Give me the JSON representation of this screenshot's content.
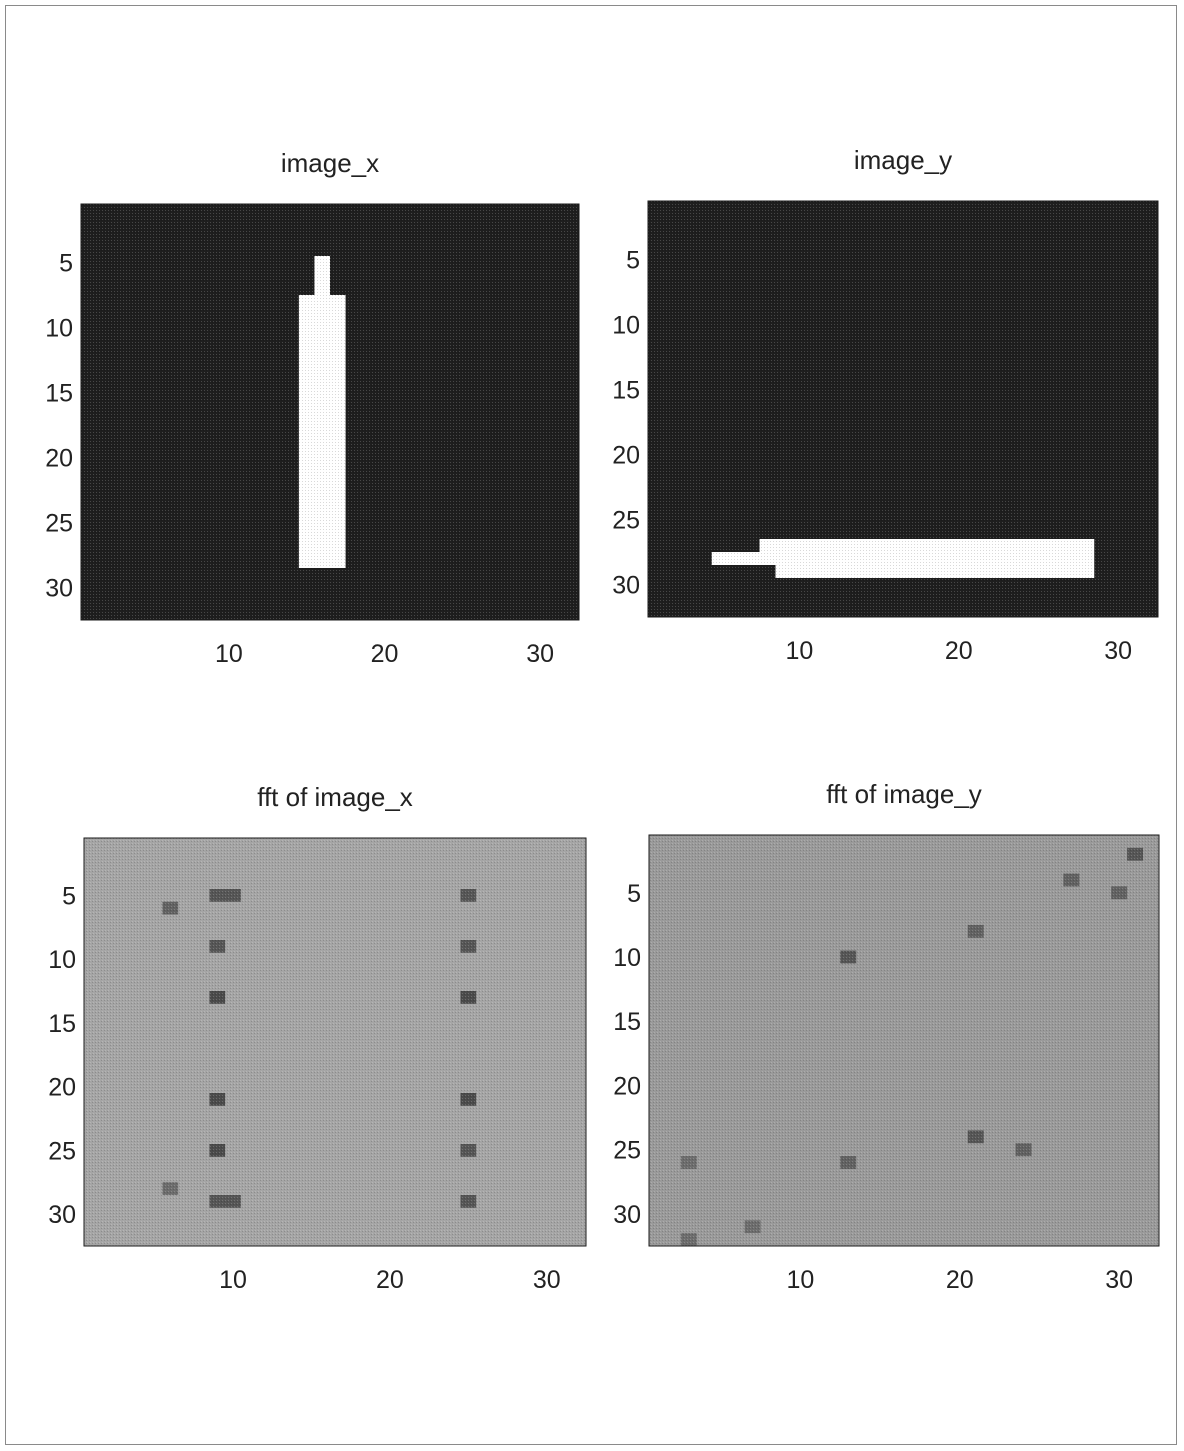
{
  "colors": {
    "background_dark": "#333333",
    "foreground_white": "#ffffff",
    "fft_gray": "#9a9a9a",
    "fft_dark_spot": "#4a4a4a"
  },
  "chart_data": [
    {
      "type": "heatmap",
      "title": "image_x",
      "xlim": [
        0.5,
        32.5
      ],
      "ylim": [
        0.5,
        32.5
      ],
      "y_reversed": true,
      "xticks": [
        "10",
        "20",
        "30"
      ],
      "yticks": [
        "5",
        "10",
        "15",
        "20",
        "25",
        "30"
      ],
      "background_value": 0,
      "cells": [
        {
          "x0": 15.5,
          "x1": 16.5,
          "y0": 4.5,
          "y1": 7.5,
          "value": 1
        },
        {
          "x0": 14.5,
          "x1": 17.5,
          "y0": 7.5,
          "y1": 28.5,
          "value": 1
        }
      ]
    },
    {
      "type": "heatmap",
      "title": "image_y",
      "xlim": [
        0.5,
        32.5
      ],
      "ylim": [
        0.5,
        32.5
      ],
      "y_reversed": true,
      "xticks": [
        "10",
        "20",
        "30"
      ],
      "yticks": [
        "5",
        "10",
        "15",
        "20",
        "25",
        "30"
      ],
      "background_value": 0,
      "cells": [
        {
          "x0": 4.5,
          "x1": 28.5,
          "y0": 27.5,
          "y1": 28.5,
          "value": 1
        },
        {
          "x0": 7.5,
          "x1": 28.5,
          "y0": 26.5,
          "y1": 27.5,
          "value": 1
        },
        {
          "x0": 8.5,
          "x1": 28.5,
          "y0": 28.5,
          "y1": 29.5,
          "value": 1
        }
      ]
    },
    {
      "type": "heatmap",
      "title": "fft of image_x",
      "xlim": [
        0.5,
        32.5
      ],
      "ylim": [
        0.5,
        32.5
      ],
      "y_reversed": true,
      "xticks": [
        "10",
        "20",
        "30"
      ],
      "yticks": [
        "5",
        "10",
        "15",
        "20",
        "25",
        "30"
      ],
      "background_value": 0.6,
      "cells": [
        {
          "x0": 8.5,
          "x1": 10.5,
          "y0": 4.5,
          "y1": 5.5,
          "value": 0.25
        },
        {
          "x0": 8.5,
          "x1": 9.5,
          "y0": 8.5,
          "y1": 9.5,
          "value": 0.25
        },
        {
          "x0": 8.5,
          "x1": 9.5,
          "y0": 12.5,
          "y1": 13.5,
          "value": 0.2
        },
        {
          "x0": 8.5,
          "x1": 9.5,
          "y0": 20.5,
          "y1": 21.5,
          "value": 0.2
        },
        {
          "x0": 8.5,
          "x1": 9.5,
          "y0": 24.5,
          "y1": 25.5,
          "value": 0.2
        },
        {
          "x0": 8.5,
          "x1": 10.5,
          "y0": 28.5,
          "y1": 29.5,
          "value": 0.25
        },
        {
          "x0": 24.5,
          "x1": 25.5,
          "y0": 4.5,
          "y1": 5.5,
          "value": 0.25
        },
        {
          "x0": 24.5,
          "x1": 25.5,
          "y0": 8.5,
          "y1": 9.5,
          "value": 0.25
        },
        {
          "x0": 24.5,
          "x1": 25.5,
          "y0": 12.5,
          "y1": 13.5,
          "value": 0.2
        },
        {
          "x0": 24.5,
          "x1": 25.5,
          "y0": 20.5,
          "y1": 21.5,
          "value": 0.2
        },
        {
          "x0": 24.5,
          "x1": 25.5,
          "y0": 24.5,
          "y1": 25.5,
          "value": 0.25
        },
        {
          "x0": 24.5,
          "x1": 25.5,
          "y0": 28.5,
          "y1": 29.5,
          "value": 0.25
        },
        {
          "x0": 5.5,
          "x1": 6.5,
          "y0": 5.5,
          "y1": 6.5,
          "value": 0.3
        },
        {
          "x0": 5.5,
          "x1": 6.5,
          "y0": 27.5,
          "y1": 28.5,
          "value": 0.35
        }
      ]
    },
    {
      "type": "heatmap",
      "title": "fft of image_y",
      "xlim": [
        0.5,
        32.5
      ],
      "ylim": [
        0.5,
        32.5
      ],
      "y_reversed": true,
      "xticks": [
        "10",
        "20",
        "30"
      ],
      "yticks": [
        "5",
        "10",
        "15",
        "20",
        "25",
        "30"
      ],
      "background_value": 0.55,
      "cells": [
        {
          "x0": 30.5,
          "x1": 31.5,
          "y0": 1.5,
          "y1": 2.5,
          "value": 0.25
        },
        {
          "x0": 26.5,
          "x1": 27.5,
          "y0": 3.5,
          "y1": 4.5,
          "value": 0.3
        },
        {
          "x0": 29.5,
          "x1": 30.5,
          "y0": 4.5,
          "y1": 5.5,
          "value": 0.3
        },
        {
          "x0": 20.5,
          "x1": 21.5,
          "y0": 7.5,
          "y1": 8.5,
          "value": 0.3
        },
        {
          "x0": 12.5,
          "x1": 13.5,
          "y0": 9.5,
          "y1": 10.5,
          "value": 0.25
        },
        {
          "x0": 20.5,
          "x1": 21.5,
          "y0": 23.5,
          "y1": 24.5,
          "value": 0.25
        },
        {
          "x0": 23.5,
          "x1": 24.5,
          "y0": 24.5,
          "y1": 25.5,
          "value": 0.3
        },
        {
          "x0": 12.5,
          "x1": 13.5,
          "y0": 25.5,
          "y1": 26.5,
          "value": 0.3
        },
        {
          "x0": 2.5,
          "x1": 3.5,
          "y0": 25.5,
          "y1": 26.5,
          "value": 0.35
        },
        {
          "x0": 6.5,
          "x1": 7.5,
          "y0": 30.5,
          "y1": 31.5,
          "value": 0.35
        },
        {
          "x0": 2.5,
          "x1": 3.5,
          "y0": 31.5,
          "y1": 32.5,
          "value": 0.35
        }
      ]
    }
  ]
}
